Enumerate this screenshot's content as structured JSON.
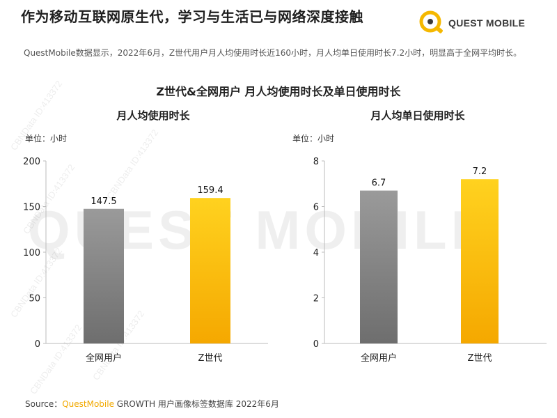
{
  "header": {
    "title": "作为移动互联网原生代，学习与生活已与网络深度接触",
    "logo_text": "QUEST MOBILE"
  },
  "summary": "QuestMobile数据显示，2022年6月，Z世代用户月人均使用时长近160小时，月人均单日使用时长7.2小时，明显高于全网平均时长。",
  "chart_title": "Z世代&全网用户 月人均使用时长及单日使用时长",
  "watermark": {
    "text": "QUEST MOBILE",
    "id_text": "CBNData ID:413372"
  },
  "colors": {
    "gray_top": "#9a9a9a",
    "gray_bottom": "#6e6e6e",
    "gold_top": "#ffd21f",
    "gold_bottom": "#f5a800",
    "brand": "#f2a900"
  },
  "chart_data": [
    {
      "type": "bar",
      "title": "月人均使用时长",
      "unit_label": "单位：小时",
      "categories": [
        "全网用户",
        "Z世代"
      ],
      "values": [
        147.5,
        159.4
      ],
      "value_labels": [
        "147.5",
        "159.4"
      ],
      "ylim": [
        0,
        200
      ],
      "yticks": [
        "0",
        "50",
        "100",
        "150",
        "200"
      ]
    },
    {
      "type": "bar",
      "title": "月人均单日使用时长",
      "unit_label": "单位：小时",
      "categories": [
        "全网用户",
        "Z世代"
      ],
      "values": [
        6.7,
        7.2
      ],
      "value_labels": [
        "6.7",
        "7.2"
      ],
      "ylim": [
        0,
        8
      ],
      "yticks": [
        "0",
        "2",
        "4",
        "6",
        "8"
      ]
    }
  ],
  "source": {
    "prefix": "Source：",
    "brand": "QuestMobile",
    "rest": " GROWTH 用户画像标签数据库 2022年6月"
  }
}
